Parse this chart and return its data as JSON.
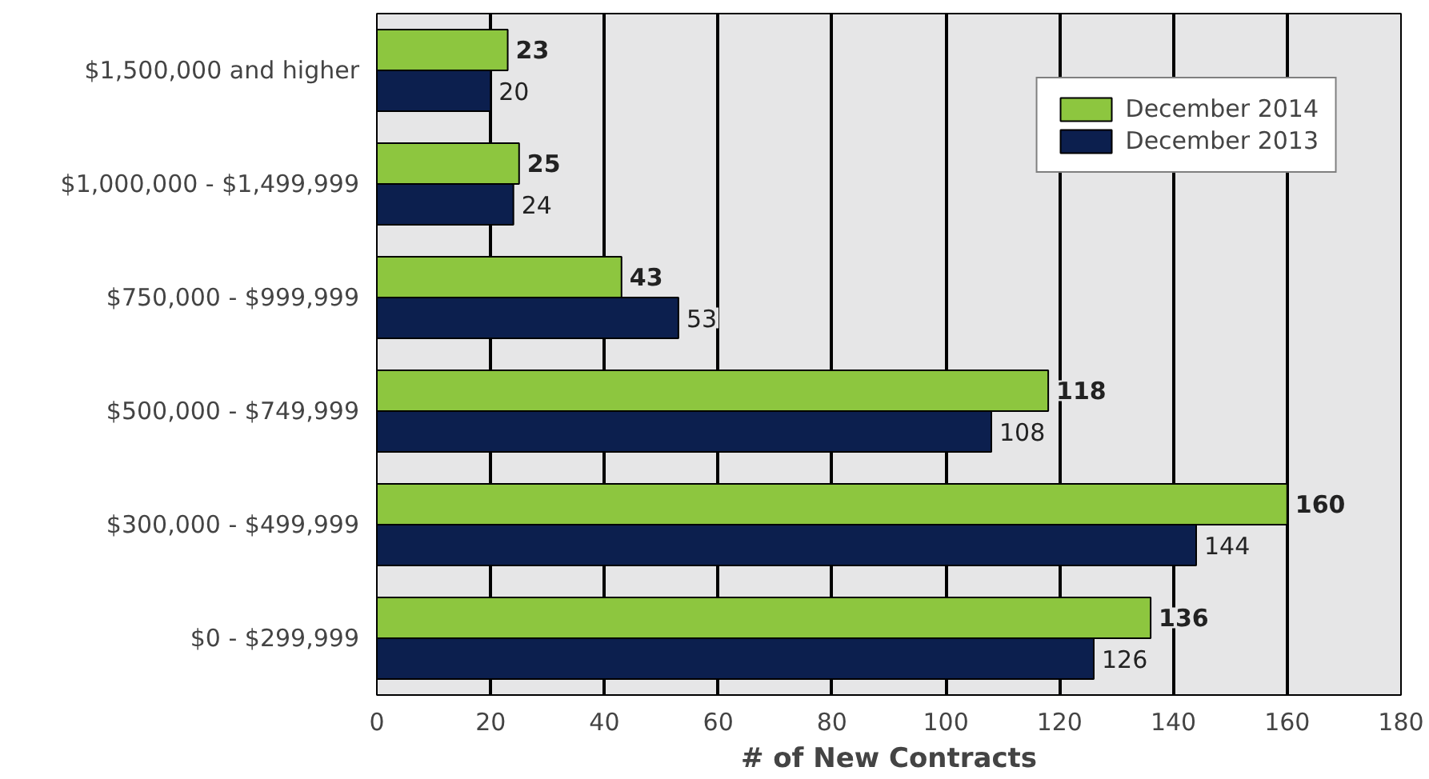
{
  "chart_data": {
    "type": "bar",
    "orientation": "horizontal",
    "xlabel": "# of New Contracts",
    "categories": [
      "$1,500,000 and higher",
      "$1,000,000 - $1,499,999",
      "$750,000 - $999,999",
      "$500,000 - $749,999",
      "$300,000 - $499,999",
      "$0 - $299,999"
    ],
    "series": [
      {
        "name": "December 2014",
        "color": "#8dc63f",
        "values": [
          23,
          25,
          43,
          118,
          160,
          136
        ]
      },
      {
        "name": "December 2013",
        "color": "#0c1f4e",
        "values": [
          20,
          24,
          53,
          108,
          144,
          126
        ]
      }
    ],
    "xlim": [
      0,
      180
    ],
    "xticks": [
      0,
      20,
      40,
      60,
      80,
      100,
      120,
      140,
      160,
      180
    ],
    "grid": "x",
    "legend": "top right",
    "data_labels": true
  }
}
